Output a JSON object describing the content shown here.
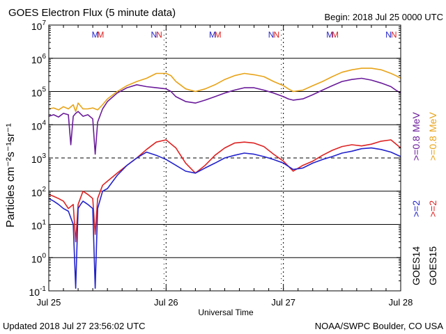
{
  "chart_data": {
    "type": "line",
    "title": "GOES Electron Flux (5 minute data)",
    "begin_label": "Begin: 2018 Jul 25 0000 UTC",
    "xlabel": "Universal Time",
    "ylabel": "Particles cm⁻²s⁻¹sr⁻¹",
    "updated": "Updated 2018 Jul 27 23:56:02 UTC",
    "source": "NOAA/SWPC Boulder, CO USA",
    "y_scale": "log",
    "ylim": [
      0.1,
      10000000
    ],
    "xlim": [
      0,
      72
    ],
    "x_unit": "hours since 2018 Jul 25 00:00 UTC",
    "y_ticks": [
      {
        "value": 0.1,
        "base": "10",
        "exp": "-1"
      },
      {
        "value": 1,
        "base": "10",
        "exp": "0"
      },
      {
        "value": 10,
        "base": "10",
        "exp": "1"
      },
      {
        "value": 100,
        "base": "10",
        "exp": "2"
      },
      {
        "value": 1000,
        "base": "10",
        "exp": "3"
      },
      {
        "value": 10000,
        "base": "10",
        "exp": "4"
      },
      {
        "value": 100000,
        "base": "10",
        "exp": "5"
      },
      {
        "value": 1000000,
        "base": "10",
        "exp": "6"
      },
      {
        "value": 10000000,
        "base": "10",
        "exp": "7"
      }
    ],
    "x_ticks": [
      {
        "value": 0,
        "label": "Jul 25"
      },
      {
        "value": 24,
        "label": "Jul 26"
      },
      {
        "value": 48,
        "label": "Jul 27"
      },
      {
        "value": 72,
        "label": "Jul 28"
      }
    ],
    "threshold": 1000,
    "grid": true,
    "markers": [
      {
        "x": 9.5,
        "label": "M",
        "color": "#2222cc"
      },
      {
        "x": 10.6,
        "label": "M",
        "color": "#dd2222"
      },
      {
        "x": 21.5,
        "label": "N",
        "color": "#2222cc"
      },
      {
        "x": 22.6,
        "label": "N",
        "color": "#dd2222"
      },
      {
        "x": 33.5,
        "label": "M",
        "color": "#2222cc"
      },
      {
        "x": 34.6,
        "label": "M",
        "color": "#dd2222"
      },
      {
        "x": 45.5,
        "label": "N",
        "color": "#2222cc"
      },
      {
        "x": 46.6,
        "label": "N",
        "color": "#dd2222"
      },
      {
        "x": 57.5,
        "label": "M",
        "color": "#2222cc"
      },
      {
        "x": 58.6,
        "label": "M",
        "color": "#dd2222"
      },
      {
        "x": 69.5,
        "label": "N",
        "color": "#2222cc"
      },
      {
        "x": 70.6,
        "label": "N",
        "color": "#dd2222"
      }
    ],
    "legend": [
      {
        "sat": "GOES14",
        "energy": ">=2",
        "color": "#2222cc"
      },
      {
        "sat": "GOES14",
        "energy": ">=0.8",
        "color": "#6a1b9a"
      },
      {
        "sat": "GOES15",
        "energy": ">=2",
        "color": "#dd2222"
      },
      {
        "sat": "GOES15",
        "energy": ">=0.8",
        "color": "#e8a317"
      }
    ],
    "legend_unit": "MeV",
    "series": [
      {
        "name": "GOES15 >=0.8 MeV",
        "color": "#e8a317",
        "x": [
          0,
          1,
          2,
          3,
          4,
          5,
          5.5,
          6,
          7,
          8,
          9,
          10,
          11,
          12,
          14,
          16,
          18,
          20,
          22,
          24,
          25,
          26,
          28,
          30,
          32,
          34,
          36,
          38,
          40,
          42,
          44,
          46,
          48,
          49,
          50,
          52,
          54,
          56,
          58,
          60,
          62,
          64,
          66,
          68,
          70,
          71,
          72
        ],
        "y": [
          30000,
          32000,
          28000,
          35000,
          30000,
          40000,
          25000,
          45000,
          30000,
          30000,
          32000,
          28000,
          40000,
          60000,
          100000,
          150000,
          200000,
          250000,
          350000,
          350000,
          300000,
          200000,
          120000,
          100000,
          120000,
          160000,
          230000,
          300000,
          350000,
          320000,
          280000,
          200000,
          150000,
          120000,
          100000,
          110000,
          150000,
          200000,
          280000,
          380000,
          450000,
          500000,
          500000,
          450000,
          350000,
          300000,
          250000
        ]
      },
      {
        "name": "GOES14 >=0.8 MeV",
        "color": "#6a1b9a",
        "x": [
          0,
          1,
          2,
          3,
          4,
          4.5,
          5,
          5.5,
          6,
          7,
          8,
          9,
          9.5,
          10,
          11,
          12,
          14,
          16,
          18,
          20,
          22,
          24,
          25,
          26,
          28,
          30,
          32,
          34,
          36,
          38,
          40,
          42,
          44,
          46,
          48,
          49,
          50,
          52,
          54,
          56,
          58,
          60,
          62,
          64,
          66,
          68,
          70,
          71,
          72
        ],
        "y": [
          18000,
          20000,
          17000,
          22000,
          20000,
          2500,
          18000,
          22000,
          25000,
          18000,
          20000,
          15000,
          1300,
          12000,
          30000,
          50000,
          90000,
          130000,
          160000,
          140000,
          130000,
          120000,
          100000,
          70000,
          50000,
          45000,
          55000,
          70000,
          90000,
          110000,
          130000,
          130000,
          110000,
          90000,
          70000,
          60000,
          55000,
          60000,
          80000,
          110000,
          150000,
          200000,
          230000,
          250000,
          220000,
          180000,
          140000,
          110000,
          90000
        ]
      },
      {
        "name": "GOES15 >=2 MeV",
        "color": "#dd2222",
        "x": [
          0,
          1,
          2,
          3,
          4,
          5,
          5.5,
          6,
          7,
          8,
          9,
          9.5,
          10,
          11,
          12,
          14,
          16,
          18,
          20,
          22,
          24,
          26,
          28,
          30,
          32,
          34,
          36,
          38,
          40,
          42,
          44,
          46,
          48,
          50,
          52,
          54,
          56,
          58,
          60,
          62,
          64,
          66,
          68,
          70,
          72
        ],
        "y": [
          80,
          70,
          60,
          50,
          30,
          40,
          3,
          40,
          100,
          80,
          60,
          5,
          60,
          150,
          200,
          350,
          600,
          1000,
          1800,
          3000,
          3500,
          2000,
          700,
          350,
          600,
          1200,
          2000,
          2800,
          3000,
          2800,
          2200,
          1300,
          800,
          400,
          600,
          800,
          1200,
          1700,
          2200,
          2500,
          2300,
          2600,
          3200,
          3500,
          2000
        ]
      },
      {
        "name": "GOES14 >=2 MeV",
        "color": "#2222cc",
        "x": [
          0,
          1,
          2,
          3,
          4,
          5,
          5.5,
          6,
          6.5,
          7,
          8,
          9,
          9.5,
          10,
          11,
          12,
          14,
          16,
          18,
          20,
          22,
          24,
          26,
          28,
          30,
          32,
          34,
          36,
          38,
          40,
          42,
          44,
          46,
          48,
          50,
          52,
          54,
          56,
          58,
          60,
          62,
          64,
          66,
          68,
          70,
          72
        ],
        "y": [
          60,
          50,
          40,
          30,
          25,
          10,
          0.12,
          30,
          40,
          50,
          40,
          30,
          0.12,
          30,
          100,
          120,
          300,
          600,
          1000,
          1500,
          1200,
          900,
          600,
          400,
          350,
          500,
          700,
          1000,
          1200,
          1400,
          1300,
          1100,
          900,
          700,
          450,
          500,
          700,
          900,
          1100,
          1400,
          1600,
          1900,
          2000,
          1800,
          1500,
          1100
        ]
      }
    ]
  }
}
